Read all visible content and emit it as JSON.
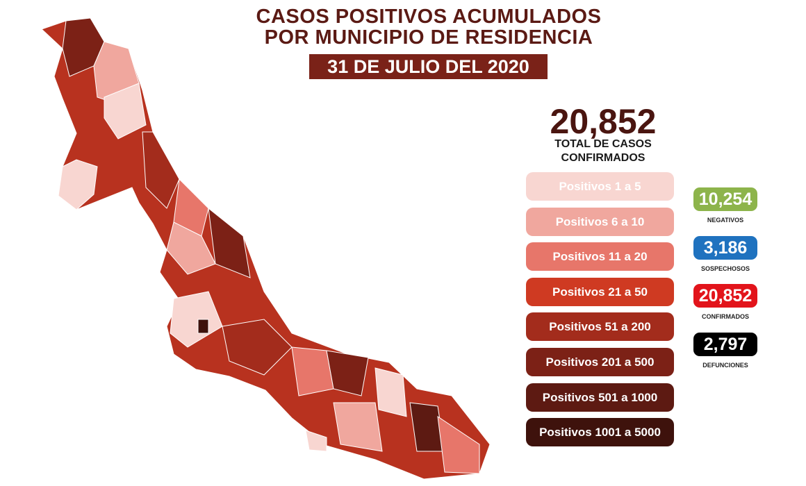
{
  "header": {
    "title_line1": "CASOS POSITIVOS ACUMULADOS",
    "title_line2": "POR MUNICIPIO DE RESIDENCIA",
    "date": "31 DE JULIO DEL 2020"
  },
  "total": {
    "value": "20,852",
    "label_line1": "TOTAL DE CASOS",
    "label_line2": "CONFIRMADOS"
  },
  "legend": {
    "items": [
      "Positivos 1 a 5",
      "Positivos 6 a 10",
      "Positivos 11 a 20",
      "Positivos 21 a 50",
      "Positivos 51 a 200",
      "Positivos 201 a 500",
      "Positivos 501 a 1000",
      "Positivos 1001 a 5000"
    ],
    "colors": [
      "#f8d6d1",
      "#f0a79e",
      "#e7766a",
      "#cf3a22",
      "#a32c1c",
      "#7c2116",
      "#5d1a12",
      "#3e120c"
    ]
  },
  "stats": [
    {
      "value": "10,254",
      "label": "NEGATIVOS",
      "color": "#8db44b"
    },
    {
      "value": "3,186",
      "label": "SOSPECHOSOS",
      "color": "#1f72bf"
    },
    {
      "value": "20,852",
      "label": "CONFIRMADOS",
      "color": "#e2141b"
    },
    {
      "value": "2,797",
      "label": "DEFUNCIONES",
      "color": "#000000"
    }
  ]
}
